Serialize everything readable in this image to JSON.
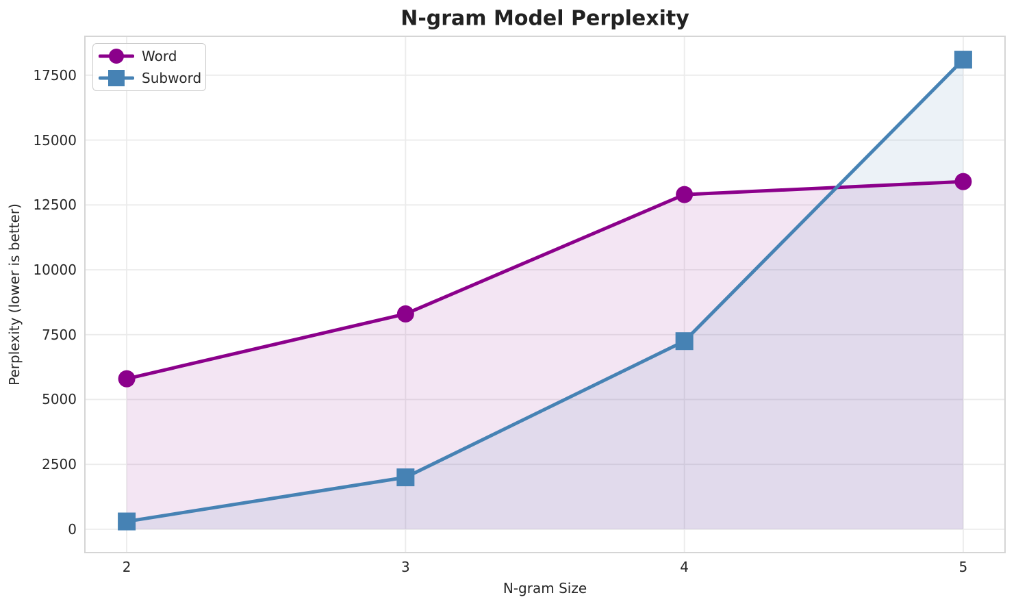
{
  "chart_data": {
    "type": "line",
    "title": "N-gram Model Perplexity",
    "xlabel": "N-gram Size",
    "ylabel": "Perplexity (lower is better)",
    "x": [
      2,
      3,
      4,
      5
    ],
    "series": [
      {
        "name": "Word",
        "marker": "circle",
        "color": "#8B008B",
        "values": [
          5800,
          8300,
          12900,
          13400
        ]
      },
      {
        "name": "Subword",
        "marker": "square",
        "color": "#4682B4",
        "values": [
          300,
          2000,
          7250,
          18100
        ]
      }
    ],
    "fill_to_zero": true,
    "fill_alpha": 0.1,
    "xticks": [
      2,
      3,
      4,
      5
    ],
    "yticks": [
      0,
      2500,
      5000,
      7500,
      10000,
      12500,
      15000,
      17500
    ],
    "xlim": [
      1.85,
      5.15
    ],
    "ylim": [
      -900,
      19000
    ],
    "grid": true,
    "legend_position": "upper-left"
  },
  "style": {
    "grid_color": "#ebebeb",
    "spine_color": "#d5d5d5",
    "text_color": "#262626",
    "title_color": "#212121",
    "background": "#ffffff"
  }
}
